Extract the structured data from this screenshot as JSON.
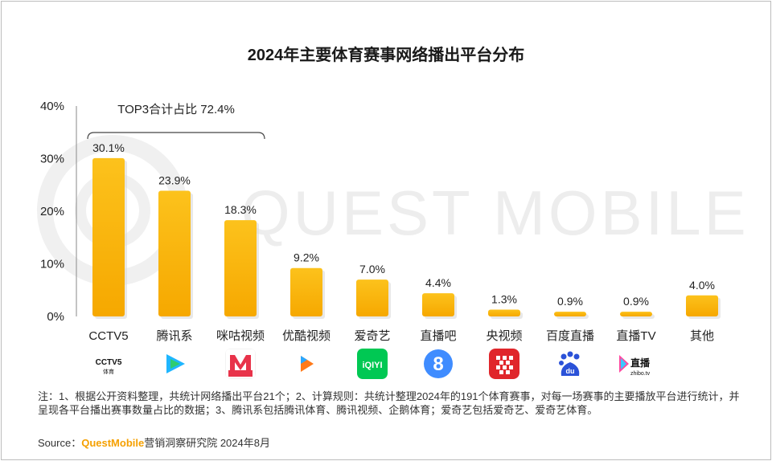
{
  "title": "2024年主要体育赛事网络播出平台分布",
  "chart_data": {
    "type": "bar",
    "title": "2024年主要体育赛事网络播出平台分布",
    "categories": [
      "CCTV5",
      "腾讯系",
      "咪咕视频",
      "优酷视频",
      "爱奇艺",
      "直播吧",
      "央视频",
      "百度直播",
      "直播TV",
      "其他"
    ],
    "values": [
      30.1,
      23.9,
      18.3,
      9.2,
      7.0,
      4.4,
      1.3,
      0.9,
      0.9,
      4.0
    ],
    "data_labels": [
      "30.1%",
      "23.9%",
      "18.3%",
      "9.2%",
      "7.0%",
      "4.4%",
      "1.3%",
      "0.9%",
      "0.9%",
      "4.0%"
    ],
    "ylim": [
      0,
      40
    ],
    "yticks": [
      "0%",
      "10%",
      "20%",
      "30%",
      "40%"
    ],
    "grid": false,
    "annotation": "TOP3合计占比 72.4%",
    "bar_color": "#fbb800",
    "watermark": "QUEST MOBILE"
  },
  "icons": [
    {
      "name": "cctv5-logo",
      "text": "CCTV5"
    },
    {
      "name": "tencent-video-icon"
    },
    {
      "name": "migu-icon"
    },
    {
      "name": "youku-icon"
    },
    {
      "name": "iqiyi-icon",
      "text": "iQIYI"
    },
    {
      "name": "zhibo8-icon",
      "text": "8"
    },
    {
      "name": "cctv-video-icon"
    },
    {
      "name": "baidu-icon",
      "text": "du"
    },
    {
      "name": "zhibotv-icon",
      "text": "直播",
      "sub": "zhibo.tv"
    },
    {
      "name": "other-blank"
    }
  ],
  "note": "注：1、根据公开资料整理，共统计网络播出平台21个；2、计算规则：共统计整理2024年的191个体育赛事，对每一场赛事的主要播放平台进行统计，并呈现各平台播出赛事数量占比的数据；3、腾讯系包括腾讯体育、腾讯视频、企鹅体育；爱奇艺包括爱奇艺、爱奇艺体育。",
  "source": {
    "prefix": "Source：",
    "brand": "QuestMobile",
    "suffix": "营销洞察研究院 2024年8月"
  }
}
